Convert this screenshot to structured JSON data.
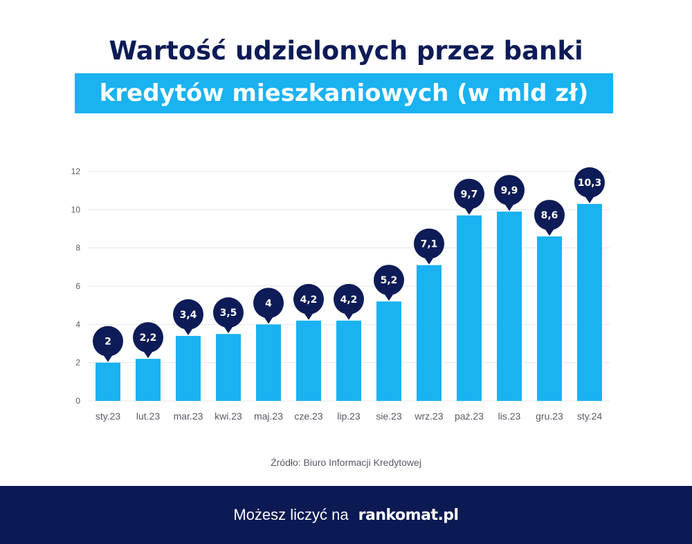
{
  "header": {
    "title_line1": "Wartość udzielonych przez banki",
    "title_line2": "kredytów mieszkaniowych (w mld zł)"
  },
  "colors": {
    "bar": "#1ab2f1",
    "bubble": "#0d1b57",
    "footer_bg": "#0b1a52",
    "grid": "#e6e6e6"
  },
  "chart_data": {
    "type": "bar",
    "title": "Wartość udzielonych przez banki kredytów mieszkaniowych (w mld zł)",
    "categories": [
      "sty.23",
      "lut.23",
      "mar.23",
      "kwi.23",
      "maj.23",
      "cze.23",
      "lip.23",
      "sie.23",
      "wrz.23",
      "paź.23",
      "lis.23",
      "gru.23",
      "sty.24"
    ],
    "values": [
      2,
      2.2,
      3.4,
      3.5,
      4,
      4.2,
      4.2,
      5.2,
      7.1,
      9.7,
      9.9,
      8.6,
      10.3
    ],
    "value_labels": [
      "2",
      "2,2",
      "3,4",
      "3,5",
      "4",
      "4,2",
      "4,2",
      "5,2",
      "7,1",
      "9,7",
      "9,9",
      "8,6",
      "10,3"
    ],
    "yticks": [
      "0",
      "2",
      "4",
      "6",
      "8",
      "10",
      "12"
    ],
    "ylim": [
      0,
      12
    ],
    "grid": true,
    "xlabel": "",
    "ylabel": ""
  },
  "source": "Źródło: Biuro Informacji Kredytowej",
  "footer": {
    "tagline": "Możesz liczyć na",
    "logo": "rankomat.pl",
    "logo_icon": "star-circle-icon"
  }
}
